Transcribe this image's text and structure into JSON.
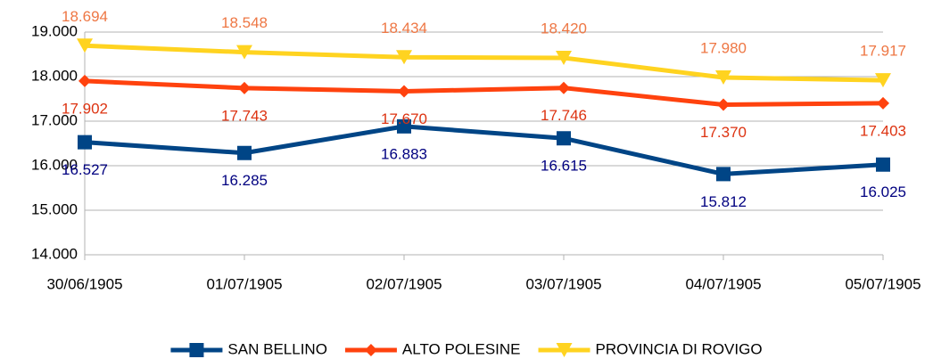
{
  "chart_data": {
    "type": "line",
    "categories": [
      "30/06/1905",
      "01/07/1905",
      "02/07/1905",
      "03/07/1905",
      "04/07/1905",
      "05/07/1905"
    ],
    "series": [
      {
        "name": "SAN BELLINO",
        "color": "#004586",
        "label_color": "#000080",
        "marker": "square",
        "label_position": "below",
        "values": [
          16527,
          16285,
          16883,
          16615,
          15812,
          16025
        ],
        "value_labels": [
          "16.527",
          "16.285",
          "16.883",
          "16.615",
          "15.812",
          "16.025"
        ]
      },
      {
        "name": "ALTO POLESINE",
        "color": "#ff420e",
        "label_color": "#dd3311",
        "marker": "diamond",
        "label_position": "below",
        "values": [
          17902,
          17743,
          17670,
          17746,
          17370,
          17403
        ],
        "value_labels": [
          "17.902",
          "17.743",
          "17.670",
          "17.746",
          "17.370",
          "17.403"
        ]
      },
      {
        "name": "PROVINCIA DI ROVIGO",
        "color": "#ffd320",
        "label_color": "#ee7744",
        "marker": "triangle-down",
        "label_position": "above",
        "values": [
          18694,
          18548,
          18434,
          18420,
          17980,
          17917
        ],
        "value_labels": [
          "18.694",
          "18.548",
          "18.434",
          "18.420",
          "17.980",
          "17.917"
        ]
      }
    ],
    "ylim": [
      14000,
      19000
    ],
    "yticks": [
      {
        "value": 14000,
        "label": "14.000"
      },
      {
        "value": 15000,
        "label": "15.000"
      },
      {
        "value": 16000,
        "label": "16.000"
      },
      {
        "value": 17000,
        "label": "17.000"
      },
      {
        "value": 18000,
        "label": "18.000"
      },
      {
        "value": 19000,
        "label": "19.000"
      }
    ],
    "grid": true,
    "legend": "bottom"
  }
}
